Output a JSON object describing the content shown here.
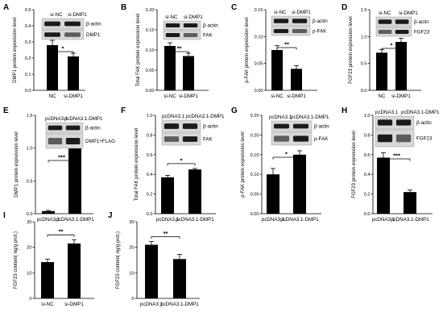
{
  "panels": [
    {
      "label": "A",
      "title": "",
      "type": "bar",
      "ylabel": "DMP1 protein expression level",
      "categories": [
        "NC",
        "si-DMP1"
      ],
      "values": [
        0.28,
        0.21
      ],
      "errors": [
        0.03,
        0.02
      ],
      "ylim": [
        0,
        0.5
      ],
      "ticks": [
        0.0,
        0.1,
        0.2,
        0.3,
        0.4,
        0.5
      ],
      "significance": "*",
      "blot_columns": [
        "si-NC",
        "si-DMP1"
      ],
      "blot_rows": [
        "β-actin",
        "DMP1"
      ]
    },
    {
      "label": "B",
      "title": "",
      "type": "bar",
      "ylabel": "Total FAK protein expression level",
      "categories": [
        "si-NC",
        "si-DMP1"
      ],
      "values": [
        0.11,
        0.085
      ],
      "errors": [
        0.008,
        0.007
      ],
      "ylim": [
        0,
        0.2
      ],
      "ticks": [
        0.0,
        0.05,
        0.1,
        0.15,
        0.2
      ],
      "significance": "**",
      "blot_columns": [
        "si-NC",
        "si-DMP1"
      ],
      "blot_rows": [
        "β-actin",
        "FAK"
      ]
    },
    {
      "label": "C",
      "title": "",
      "type": "bar",
      "ylabel": "p-FAK protein expression level",
      "categories": [
        "si-NC",
        "si-DMP1"
      ],
      "values": [
        0.075,
        0.04
      ],
      "errors": [
        0.008,
        0.006
      ],
      "ylim": [
        0,
        0.15
      ],
      "ticks": [
        0.0,
        0.05,
        0.1,
        0.15
      ],
      "significance": "**",
      "blot_columns": [
        "si-NC",
        "si-DMP1"
      ],
      "blot_rows": [
        "β-actin",
        "p-FAK"
      ]
    },
    {
      "label": "D",
      "title": "",
      "type": "bar",
      "ylabel": "FGF23 protein expression level",
      "categories": [
        "NC",
        "si-DMP1"
      ],
      "values": [
        0.7,
        0.9
      ],
      "errors": [
        0.06,
        0.07
      ],
      "ylim": [
        0,
        1.5
      ],
      "ticks": [
        0.0,
        0.5,
        1.0,
        1.5
      ],
      "significance": "*",
      "blot_columns": [
        "si-NC",
        "si-DMP1"
      ],
      "blot_rows": [
        "β-actin",
        "FGF23"
      ]
    },
    {
      "label": "E",
      "title": "",
      "type": "bar",
      "ylabel": "DMP1 protein expression level",
      "categories": [
        "pcDNA3.1",
        "pcDNA3.1-DMP1"
      ],
      "values": [
        0.04,
        1.08
      ],
      "errors": [
        0.01,
        0.12
      ],
      "ylim": [
        0,
        1.5
      ],
      "ticks": [
        0.0,
        0.5,
        1.0,
        1.5
      ],
      "significance": "***",
      "blot_columns": [
        "pcDNA3.1",
        "pcDNA3.1-DMP1"
      ],
      "blot_rows": [
        "β-actin",
        "DMP1+FLAG"
      ]
    },
    {
      "label": "F",
      "title": "",
      "type": "bar",
      "ylabel": "Total FAK protein expression level",
      "categories": [
        "pcDNA3.1",
        "pcDNA3.1-DMP1"
      ],
      "values": [
        0.37,
        0.45
      ],
      "errors": [
        0.02,
        0.01
      ],
      "ylim": [
        0,
        1.0
      ],
      "ticks": [
        0.0,
        0.2,
        0.4,
        0.6,
        0.8,
        1.0
      ],
      "significance": "*",
      "blot_columns": [
        "pcDNA3.1",
        "pcDNA3.1-DMP1"
      ],
      "blot_rows": [
        "β-actin",
        "FAK"
      ]
    },
    {
      "label": "G",
      "title": "",
      "type": "bar",
      "ylabel": "p-FAK protein expression level",
      "categories": [
        "pcDNA3.1",
        "pcDNA3.1-DMP1"
      ],
      "values": [
        0.1,
        0.15
      ],
      "errors": [
        0.015,
        0.01
      ],
      "ylim": [
        0,
        0.25
      ],
      "ticks": [
        0.0,
        0.05,
        0.1,
        0.15,
        0.2,
        0.25
      ],
      "significance": "*",
      "blot_columns": [
        "pcDNA3.1",
        "pcDNA3.1-DMP1"
      ],
      "blot_rows": [
        "β-actin",
        "p-FAK"
      ]
    },
    {
      "label": "H",
      "title": "",
      "type": "bar",
      "ylabel": "FGF23 protein expression level",
      "categories": [
        "pcDNA3.1",
        "pcDNA3.1-DMP1"
      ],
      "values": [
        0.57,
        0.22
      ],
      "errors": [
        0.05,
        0.02
      ],
      "ylim": [
        0,
        1.0
      ],
      "ticks": [
        0.0,
        0.2,
        0.4,
        0.6,
        0.8,
        1.0
      ],
      "significance": "***",
      "blot_columns": [
        "pcDNA3.1",
        "pcDNA3.1-DMP1"
      ],
      "blot_rows": [
        "β-actin",
        "FGF23"
      ]
    },
    {
      "label": "I",
      "title": "",
      "type": "bar",
      "ylabel": "FGF23 content( ng/g prot.)",
      "categories": [
        "si-NC",
        "si-DMP1"
      ],
      "values": [
        14.2,
        21.5
      ],
      "errors": [
        1.2,
        1.5
      ],
      "ylim": [
        0,
        30
      ],
      "ticks": [
        0,
        10,
        20,
        30
      ],
      "significance": "**",
      "blot_columns": [],
      "blot_rows": []
    },
    {
      "label": "J",
      "title": "",
      "type": "bar",
      "ylabel": "FGF23 content( ng/g prot.)",
      "categories": [
        "pcDNA3.1",
        "pcDNA3.1-DMP1"
      ],
      "values": [
        21.0,
        15.4
      ],
      "errors": [
        1.3,
        1.8
      ],
      "ylim": [
        0,
        30
      ],
      "ticks": [
        0,
        10,
        20,
        30
      ],
      "significance": "**",
      "blot_columns": [],
      "blot_rows": []
    }
  ],
  "chart_data": [
    {
      "type": "bar",
      "categories": [
        "NC",
        "si-DMP1"
      ],
      "values": [
        0.28,
        0.21
      ],
      "ylabel": "DMP1 protein expression level",
      "ylim": [
        0,
        0.5
      ]
    },
    {
      "type": "bar",
      "categories": [
        "si-NC",
        "si-DMP1"
      ],
      "values": [
        0.11,
        0.085
      ],
      "ylabel": "Total FAK protein expression level",
      "ylim": [
        0,
        0.2
      ]
    },
    {
      "type": "bar",
      "categories": [
        "si-NC",
        "si-DMP1"
      ],
      "values": [
        0.075,
        0.04
      ],
      "ylabel": "p-FAK protein expression level",
      "ylim": [
        0,
        0.15
      ]
    },
    {
      "type": "bar",
      "categories": [
        "NC",
        "si-DMP1"
      ],
      "values": [
        0.7,
        0.9
      ],
      "ylabel": "FGF23 protein expression level",
      "ylim": [
        0,
        1.5
      ]
    },
    {
      "type": "bar",
      "categories": [
        "pcDNA3.1",
        "pcDNA3.1-DMP1"
      ],
      "values": [
        0.04,
        1.08
      ],
      "ylabel": "DMP1 protein expression level",
      "ylim": [
        0,
        1.5
      ]
    },
    {
      "type": "bar",
      "categories": [
        "pcDNA3.1",
        "pcDNA3.1-DMP1"
      ],
      "values": [
        0.37,
        0.45
      ],
      "ylabel": "Total FAK protein expression level",
      "ylim": [
        0,
        1.0
      ]
    },
    {
      "type": "bar",
      "categories": [
        "pcDNA3.1",
        "pcDNA3.1-DMP1"
      ],
      "values": [
        0.1,
        0.15
      ],
      "ylabel": "p-FAK protein expression level",
      "ylim": [
        0,
        0.25
      ]
    },
    {
      "type": "bar",
      "categories": [
        "pcDNA3.1",
        "pcDNA3.1-DMP1"
      ],
      "values": [
        0.57,
        0.22
      ],
      "ylabel": "FGF23 protein expression level",
      "ylim": [
        0,
        1.0
      ]
    },
    {
      "type": "bar",
      "categories": [
        "si-NC",
        "si-DMP1"
      ],
      "values": [
        14.2,
        21.5
      ],
      "ylabel": "FGF23 content( ng/g prot.)",
      "ylim": [
        0,
        30
      ]
    },
    {
      "type": "bar",
      "categories": [
        "pcDNA3.1",
        "pcDNA3.1-DMP1"
      ],
      "values": [
        21.0,
        15.4
      ],
      "ylabel": "FGF23 content( ng/g prot.)",
      "ylim": [
        0,
        30
      ]
    }
  ]
}
